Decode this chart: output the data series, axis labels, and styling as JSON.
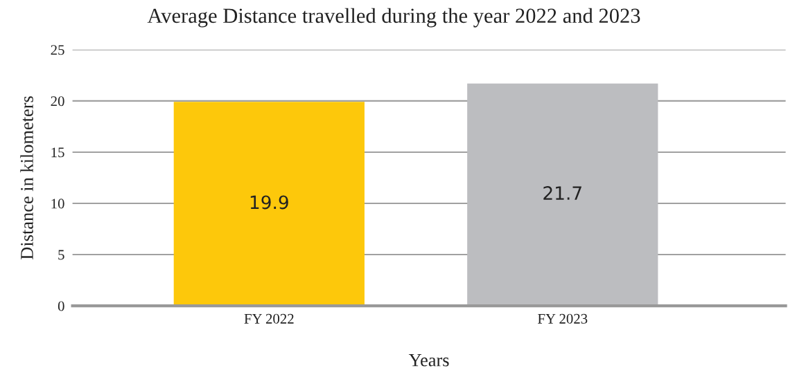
{
  "chart_data": {
    "type": "bar",
    "title": "Average Distance travelled during the year 2022 and 2023",
    "xlabel": "Years",
    "ylabel": "Distance in kilometers",
    "categories": [
      "FY 2022",
      "FY 2023"
    ],
    "values": [
      19.9,
      21.7
    ],
    "colors": [
      "#fdc80b",
      "#bcbdc0"
    ],
    "ylim": [
      0,
      25
    ],
    "yticks": [
      0,
      5,
      10,
      15,
      20,
      25
    ],
    "grid": "y",
    "data_labels": true,
    "legend": false
  }
}
